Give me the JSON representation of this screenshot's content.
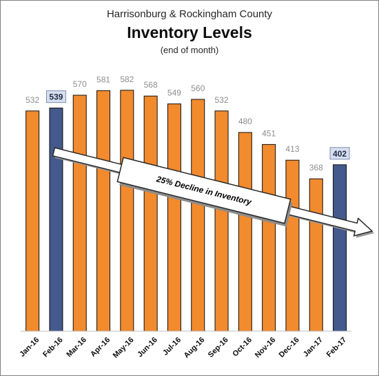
{
  "title": "Harrisonburg & Rockingham County",
  "subtitle": "Inventory Levels",
  "note": "(end of month)",
  "colors": {
    "bar": "#f28a2e",
    "highlight": "#44598c",
    "label_box": "#d6dff0",
    "axis": "#bfbfbf"
  },
  "chart_data": {
    "type": "bar",
    "title": "Inventory Levels",
    "categories": [
      "Jan-16",
      "Feb-16",
      "Mar-16",
      "Apr-16",
      "May-16",
      "Jun-16",
      "Jul-16",
      "Aug-16",
      "Sep-16",
      "Oct-16",
      "Nov-16",
      "Dec-16",
      "Jan-17",
      "Feb-17"
    ],
    "values": [
      532,
      539,
      570,
      581,
      582,
      568,
      549,
      560,
      532,
      480,
      451,
      413,
      368,
      402
    ],
    "highlighted": [
      "Feb-16",
      "Feb-17"
    ],
    "ylim": [
      0,
      600
    ],
    "grid": false,
    "legend": "none",
    "annotation": "25% Decline in Inventory"
  }
}
